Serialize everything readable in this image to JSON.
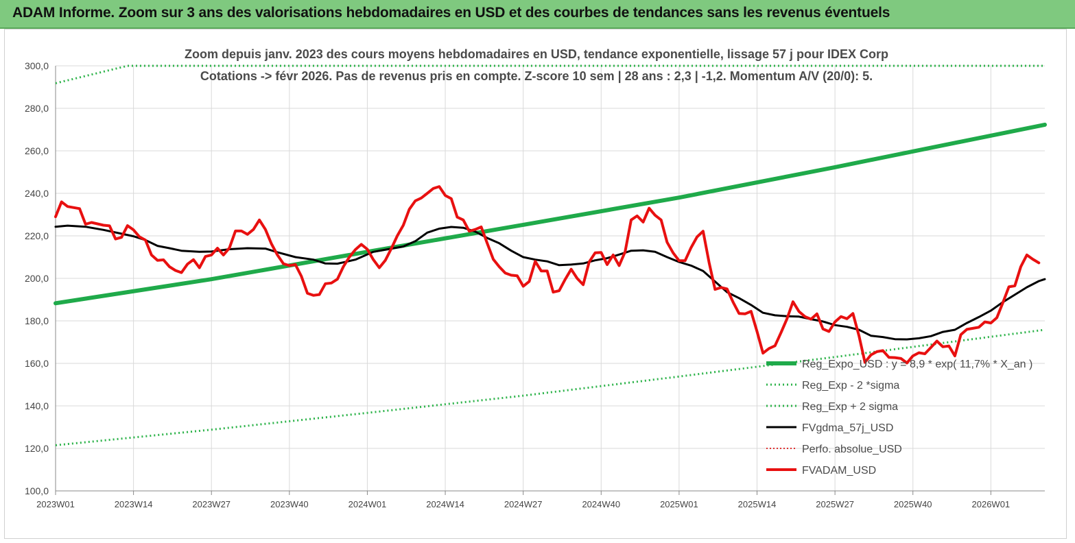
{
  "banner": {
    "title": "ADAM Informe. Zoom sur 3 ans des valorisations hebdomadaires en USD et des courbes de tendances sans les revenus éventuels"
  },
  "colors": {
    "banner_bg": "#7fc97f",
    "regression": "#1faa4a",
    "sigma_bands": "#2db34a",
    "smoothed": "#000000",
    "perfo_absolue": "#e03030",
    "price": "#e81010",
    "grid": "#d9d9d9"
  },
  "chart_data": {
    "type": "line",
    "title_line1": "Zoom depuis janv. 2023 des cours moyens hebdomadaires en USD, tendance exponentielle, lissage 57 j pour IDEX Corp",
    "title_line2": "Cotations -> févr 2026. Pas de revenus pris en compte. Z-score 10 sem | 28 ans : 2,3 | -1,2. Momentum A/V (20/0): 5.",
    "ylim": [
      100,
      300
    ],
    "yticks": [
      "100,0",
      "120,0",
      "140,0",
      "160,0",
      "180,0",
      "200,0",
      "220,0",
      "240,0",
      "260,0",
      "280,0",
      "300,0"
    ],
    "xlim": [
      0,
      165
    ],
    "xticks": [
      {
        "label": "2023W01",
        "x": 0
      },
      {
        "label": "2023W14",
        "x": 13
      },
      {
        "label": "2023W27",
        "x": 26
      },
      {
        "label": "2023W40",
        "x": 39
      },
      {
        "label": "2024W01",
        "x": 52
      },
      {
        "label": "2024W14",
        "x": 65
      },
      {
        "label": "2024W27",
        "x": 78
      },
      {
        "label": "2024W40",
        "x": 91
      },
      {
        "label": "2025W01",
        "x": 104
      },
      {
        "label": "2025W14",
        "x": 117
      },
      {
        "label": "2025W27",
        "x": 130
      },
      {
        "label": "2025W40",
        "x": 143
      },
      {
        "label": "2026W01",
        "x": 156
      }
    ],
    "legend": [
      {
        "key": "reg",
        "label": "Reg_Expo_USD : y = 8,9 * exp( 11,7% *  X_an )",
        "style": "thick"
      },
      {
        "key": "lower",
        "label": "Reg_Exp - 2 *sigma",
        "style": "dotted-green"
      },
      {
        "key": "upper",
        "label": "Reg_Exp + 2 sigma",
        "style": "dotted-green"
      },
      {
        "key": "smooth",
        "label": "FVgdma_57j_USD",
        "style": "solid-black"
      },
      {
        "key": "perfo",
        "label": "Perfo. absolue_USD",
        "style": "dotted-red"
      },
      {
        "key": "price",
        "label": "FVADAM_USD",
        "style": "solid-red"
      }
    ],
    "series": [
      {
        "key": "reg",
        "name": "Reg_Expo_USD : y = 8,9 * exp( 11,7% *  X_an )",
        "points": [
          [
            0,
            188.3
          ],
          [
            26,
            199.6
          ],
          [
            52,
            212.5
          ],
          [
            78,
            225.2
          ],
          [
            104,
            238.0
          ],
          [
            130,
            252.3
          ],
          [
            165,
            272.3
          ]
        ]
      },
      {
        "key": "lower",
        "name": "Reg_Exp - 2 *sigma",
        "points": [
          [
            0,
            121.5
          ],
          [
            26,
            128.8
          ],
          [
            52,
            136.7
          ],
          [
            78,
            144.8
          ],
          [
            104,
            153.8
          ],
          [
            130,
            163.0
          ],
          [
            165,
            175.8
          ]
        ]
      },
      {
        "key": "upper",
        "name": "Reg_Exp + 2 sigma",
        "points": [
          [
            0,
            291.8
          ],
          [
            12,
            300.0
          ],
          [
            165,
            300.0
          ]
        ]
      },
      {
        "key": "smooth",
        "name": "FVgdma_57j_USD",
        "points": [
          [
            0,
            224.3
          ],
          [
            2,
            224.8
          ],
          [
            5,
            224.3
          ],
          [
            8,
            222.8
          ],
          [
            11,
            221.0
          ],
          [
            13,
            219.8
          ],
          [
            15,
            218.0
          ],
          [
            17,
            215.3
          ],
          [
            19,
            214.2
          ],
          [
            21,
            213.0
          ],
          [
            24,
            212.5
          ],
          [
            26,
            212.6
          ],
          [
            29,
            213.7
          ],
          [
            32,
            214.2
          ],
          [
            35,
            214.0
          ],
          [
            37,
            212.3
          ],
          [
            40,
            210.0
          ],
          [
            43,
            208.8
          ],
          [
            45,
            207.0
          ],
          [
            47,
            206.9
          ],
          [
            50,
            208.8
          ],
          [
            53,
            212.5
          ],
          [
            56,
            214.0
          ],
          [
            58,
            215.0
          ],
          [
            60,
            217.5
          ],
          [
            62,
            221.5
          ],
          [
            64,
            223.4
          ],
          [
            66,
            224.2
          ],
          [
            68,
            223.8
          ],
          [
            70,
            222.0
          ],
          [
            72,
            219.0
          ],
          [
            74,
            216.5
          ],
          [
            76,
            213.0
          ],
          [
            78,
            210.0
          ],
          [
            80,
            208.8
          ],
          [
            82,
            208.0
          ],
          [
            84,
            206.2
          ],
          [
            86,
            206.5
          ],
          [
            88,
            207.0
          ],
          [
            90,
            208.5
          ],
          [
            92,
            209.5
          ],
          [
            94,
            211.2
          ],
          [
            96,
            213.0
          ],
          [
            98,
            213.2
          ],
          [
            100,
            212.5
          ],
          [
            102,
            210.0
          ],
          [
            104,
            207.7
          ],
          [
            106,
            206.0
          ],
          [
            108,
            203.5
          ],
          [
            110,
            198.5
          ],
          [
            112,
            193.5
          ],
          [
            114,
            190.7
          ],
          [
            116,
            187.5
          ],
          [
            118,
            183.8
          ],
          [
            120,
            182.6
          ],
          [
            122,
            182.2
          ],
          [
            124,
            182.0
          ],
          [
            126,
            180.8
          ],
          [
            128,
            179.7
          ],
          [
            130,
            178.0
          ],
          [
            132,
            177.2
          ],
          [
            134,
            175.8
          ],
          [
            136,
            173.0
          ],
          [
            138,
            172.4
          ],
          [
            140,
            171.4
          ],
          [
            142,
            171.3
          ],
          [
            144,
            171.8
          ],
          [
            146,
            172.8
          ],
          [
            148,
            174.8
          ],
          [
            150,
            175.8
          ],
          [
            152,
            179.0
          ],
          [
            154,
            181.8
          ],
          [
            156,
            184.8
          ],
          [
            158,
            188.8
          ],
          [
            160,
            192.3
          ],
          [
            162,
            195.8
          ],
          [
            164,
            198.7
          ],
          [
            165,
            199.6
          ]
        ]
      },
      {
        "key": "perfo",
        "name": "Perfo. absolue_USD",
        "points": []
      },
      {
        "key": "price",
        "name": "FVADAM_USD",
        "points": [
          [
            0,
            229.0
          ],
          [
            1,
            236.0
          ],
          [
            2,
            233.8
          ],
          [
            4,
            232.8
          ],
          [
            5,
            225.5
          ],
          [
            6,
            226.3
          ],
          [
            8,
            225.0
          ],
          [
            9,
            224.7
          ],
          [
            10,
            218.5
          ],
          [
            11,
            219.3
          ],
          [
            12,
            224.8
          ],
          [
            13,
            222.8
          ],
          [
            14,
            219.5
          ],
          [
            15,
            218.0
          ],
          [
            16,
            211.0
          ],
          [
            17,
            208.5
          ],
          [
            18,
            208.7
          ],
          [
            19,
            205.5
          ],
          [
            20,
            203.7
          ],
          [
            21,
            202.7
          ],
          [
            22,
            206.7
          ],
          [
            23,
            208.8
          ],
          [
            24,
            205.0
          ],
          [
            25,
            210.3
          ],
          [
            26,
            211.0
          ],
          [
            27,
            214.2
          ],
          [
            28,
            211.0
          ],
          [
            29,
            214.3
          ],
          [
            30,
            222.3
          ],
          [
            31,
            222.3
          ],
          [
            32,
            220.7
          ],
          [
            33,
            223.0
          ],
          [
            34,
            227.5
          ],
          [
            35,
            223.0
          ],
          [
            36,
            216.3
          ],
          [
            37,
            211.0
          ],
          [
            38,
            206.9
          ],
          [
            39,
            206.0
          ],
          [
            40,
            206.5
          ],
          [
            41,
            201.0
          ],
          [
            42,
            193.0
          ],
          [
            43,
            192.0
          ],
          [
            44,
            192.4
          ],
          [
            45,
            197.5
          ],
          [
            46,
            197.8
          ],
          [
            47,
            199.6
          ],
          [
            48,
            205.5
          ],
          [
            49,
            210.0
          ],
          [
            50,
            213.5
          ],
          [
            51,
            216.0
          ],
          [
            52,
            213.7
          ],
          [
            53,
            208.8
          ],
          [
            54,
            205.0
          ],
          [
            55,
            208.5
          ],
          [
            56,
            214.0
          ],
          [
            57,
            220.0
          ],
          [
            58,
            225.0
          ],
          [
            59,
            232.5
          ],
          [
            60,
            236.5
          ],
          [
            61,
            237.8
          ],
          [
            62,
            240.0
          ],
          [
            63,
            242.3
          ],
          [
            64,
            243.2
          ],
          [
            65,
            239.0
          ],
          [
            66,
            237.5
          ],
          [
            67,
            228.8
          ],
          [
            68,
            227.5
          ],
          [
            69,
            222.2
          ],
          [
            70,
            223.0
          ],
          [
            71,
            224.2
          ],
          [
            72,
            216.5
          ],
          [
            73,
            209.0
          ],
          [
            74,
            205.5
          ],
          [
            75,
            202.5
          ],
          [
            76,
            201.5
          ],
          [
            77,
            201.2
          ],
          [
            78,
            196.3
          ],
          [
            79,
            198.5
          ],
          [
            80,
            208.0
          ],
          [
            81,
            203.5
          ],
          [
            82,
            203.5
          ],
          [
            83,
            193.5
          ],
          [
            84,
            194.2
          ],
          [
            85,
            199.5
          ],
          [
            86,
            204.3
          ],
          [
            87,
            200.0
          ],
          [
            88,
            197.0
          ],
          [
            89,
            207.7
          ],
          [
            90,
            212.0
          ],
          [
            91,
            212.2
          ],
          [
            92,
            206.5
          ],
          [
            93,
            211.0
          ],
          [
            94,
            206.0
          ],
          [
            95,
            212.5
          ],
          [
            96,
            227.5
          ],
          [
            97,
            229.4
          ],
          [
            98,
            226.5
          ],
          [
            99,
            233.0
          ],
          [
            100,
            229.7
          ],
          [
            101,
            227.5
          ],
          [
            102,
            217.0
          ],
          [
            103,
            212.0
          ],
          [
            104,
            208.3
          ],
          [
            105,
            208.3
          ],
          [
            106,
            214.5
          ],
          [
            107,
            219.5
          ],
          [
            108,
            222.2
          ],
          [
            109,
            207.5
          ],
          [
            110,
            194.8
          ],
          [
            111,
            195.7
          ],
          [
            112,
            195.0
          ],
          [
            113,
            188.8
          ],
          [
            114,
            183.5
          ],
          [
            115,
            183.3
          ],
          [
            116,
            184.5
          ],
          [
            117,
            175.0
          ],
          [
            118,
            164.8
          ],
          [
            119,
            167.0
          ],
          [
            120,
            168.3
          ],
          [
            121,
            174.5
          ],
          [
            122,
            181.0
          ],
          [
            123,
            189.0
          ],
          [
            124,
            184.4
          ],
          [
            125,
            182.0
          ],
          [
            126,
            180.8
          ],
          [
            127,
            183.3
          ],
          [
            128,
            176.2
          ],
          [
            129,
            175.0
          ],
          [
            130,
            179.5
          ],
          [
            131,
            182.0
          ],
          [
            132,
            181.0
          ],
          [
            133,
            183.5
          ],
          [
            134,
            173.0
          ],
          [
            135,
            160.5
          ],
          [
            136,
            164.0
          ],
          [
            137,
            165.5
          ],
          [
            138,
            166.0
          ],
          [
            139,
            162.8
          ],
          [
            140,
            162.7
          ],
          [
            141,
            162.3
          ],
          [
            142,
            160.2
          ],
          [
            143,
            163.5
          ],
          [
            144,
            165.0
          ],
          [
            145,
            164.5
          ],
          [
            146,
            167.5
          ],
          [
            147,
            170.5
          ],
          [
            148,
            167.8
          ],
          [
            149,
            168.2
          ],
          [
            150,
            163.5
          ],
          [
            151,
            173.5
          ],
          [
            152,
            176.0
          ],
          [
            153,
            176.5
          ],
          [
            154,
            177.0
          ],
          [
            155,
            179.5
          ],
          [
            156,
            179.0
          ],
          [
            157,
            181.5
          ],
          [
            158,
            188.5
          ],
          [
            159,
            196.0
          ],
          [
            160,
            196.5
          ],
          [
            161,
            205.5
          ],
          [
            162,
            211.0
          ],
          [
            163,
            209.0
          ],
          [
            164,
            207.3
          ]
        ]
      }
    ]
  }
}
